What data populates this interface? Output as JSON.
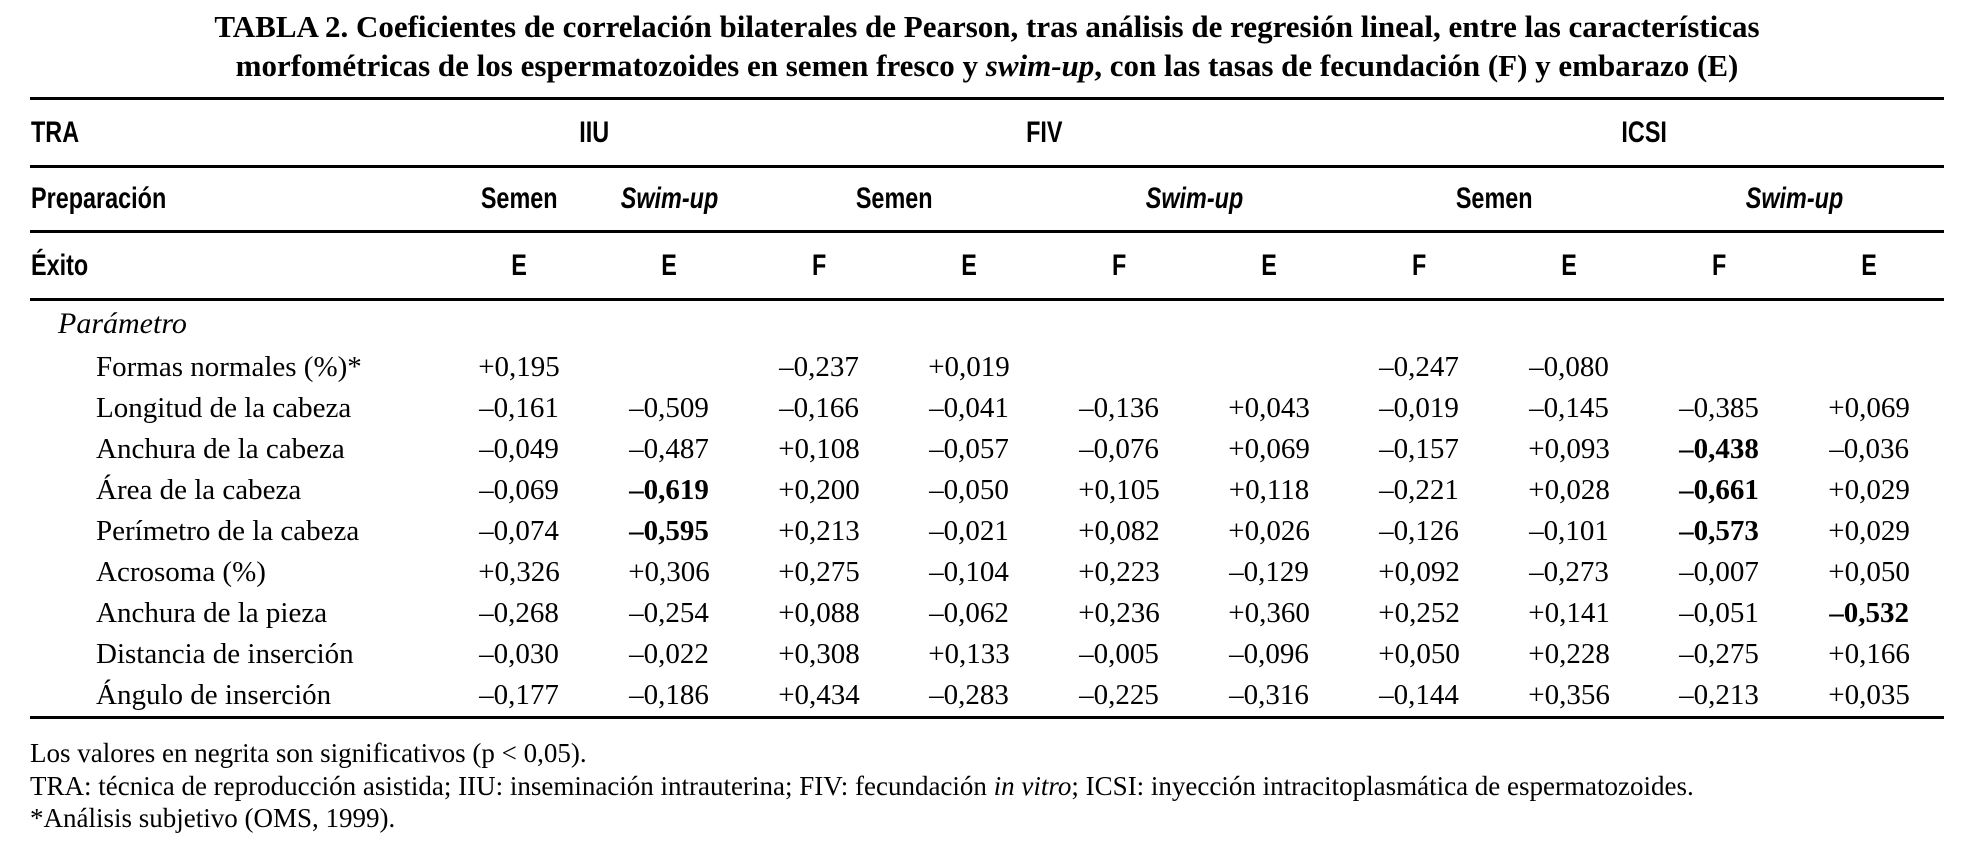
{
  "title": {
    "line1": "TABLA 2. Coeficientes de correlación bilaterales de Pearson, tras análisis de regresión lineal, entre las características",
    "line2_pre": "morfométricas de los espermatozoides en semen fresco y ",
    "line2_italic": "swim-up",
    "line2_post": ", con las tasas de fecundación (F) y embarazo (E)"
  },
  "table": {
    "technique_row": {
      "label": "TRA",
      "groups": [
        "IIU",
        "FIV",
        "ICSI"
      ]
    },
    "preparation_row": {
      "label": "Preparación",
      "semen": "Semen",
      "swimup": "Swim-up"
    },
    "exito_row": {
      "label": "Éxito",
      "cols": [
        "E",
        "E",
        "F",
        "E",
        "F",
        "E",
        "F",
        "E",
        "F",
        "E"
      ]
    },
    "param_header": "Parámetro",
    "rows": [
      {
        "label": "Formas normales (%)*",
        "values": [
          "+0,195",
          "",
          "–0,237",
          "+0,019",
          "",
          "",
          "–0,247",
          "–0,080",
          "",
          ""
        ],
        "bold": []
      },
      {
        "label": "Longitud de la cabeza",
        "values": [
          "–0,161",
          "–0,509",
          "–0,166",
          "–0,041",
          "–0,136",
          "+0,043",
          "–0,019",
          "–0,145",
          "–0,385",
          "+0,069"
        ],
        "bold": []
      },
      {
        "label": "Anchura de la cabeza",
        "values": [
          "–0,049",
          "–0,487",
          "+0,108",
          "–0,057",
          "–0,076",
          "+0,069",
          "–0,157",
          "+0,093",
          "–0,438",
          "–0,036"
        ],
        "bold": [
          8
        ]
      },
      {
        "label": "Área de la cabeza",
        "values": [
          "–0,069",
          "–0,619",
          "+0,200",
          "–0,050",
          "+0,105",
          "+0,118",
          "–0,221",
          "+0,028",
          "–0,661",
          "+0,029"
        ],
        "bold": [
          1,
          8
        ]
      },
      {
        "label": "Perímetro de la cabeza",
        "values": [
          "–0,074",
          "–0,595",
          "+0,213",
          "–0,021",
          "+0,082",
          "+0,026",
          "–0,126",
          "–0,101",
          "–0,573",
          "+0,029"
        ],
        "bold": [
          1,
          8
        ]
      },
      {
        "label": "Acrosoma (%)",
        "values": [
          "+0,326",
          "+0,306",
          "+0,275",
          "–0,104",
          "+0,223",
          "–0,129",
          "+0,092",
          "–0,273",
          "–0,007",
          "+0,050"
        ],
        "bold": []
      },
      {
        "label": "Anchura de la pieza",
        "values": [
          "–0,268",
          "–0,254",
          "+0,088",
          "–0,062",
          "+0,236",
          "+0,360",
          "+0,252",
          "+0,141",
          "–0,051",
          "–0,532"
        ],
        "bold": [
          9
        ]
      },
      {
        "label": "Distancia de inserción",
        "values": [
          "–0,030",
          "–0,022",
          "+0,308",
          "+0,133",
          "–0,005",
          "–0,096",
          "+0,050",
          "+0,228",
          "–0,275",
          "+0,166"
        ],
        "bold": []
      },
      {
        "label": "Ángulo de inserción",
        "values": [
          "–0,177",
          "–0,186",
          "+0,434",
          "–0,283",
          "–0,225",
          "–0,316",
          "–0,144",
          "+0,356",
          "–0,213",
          "+0,035"
        ],
        "bold": []
      }
    ]
  },
  "footnotes": {
    "line1": "Los valores en negrita son significativos (p < 0,05).",
    "line2_pre": "TRA: técnica de reproducción asistida; IIU: inseminación intrauterina; FIV: fecundación ",
    "line2_italic": "in vitro",
    "line2_post": "; ICSI: inyección intracitoplasmática de espermatozoides.",
    "line3": "*Análisis subjetivo (OMS, 1999)."
  }
}
